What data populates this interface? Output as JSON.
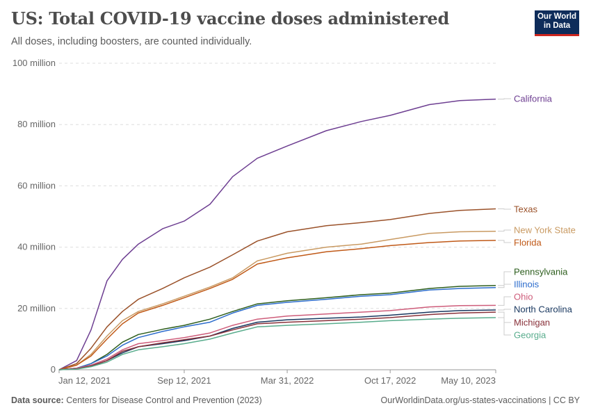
{
  "title": "US: Total COVID-19 vaccine doses administered",
  "subtitle": "All doses, including boosters, are counted individually.",
  "logo": {
    "line1": "Our World",
    "line2": "in Data",
    "bg": "#0e2c5a",
    "accent": "#ce261e"
  },
  "footer": {
    "source_label": "Data source:",
    "source": "Centers for Disease Control and Prevention (2023)",
    "link": "OurWorldinData.org/us-states-vaccinations | CC BY"
  },
  "chart_data": {
    "type": "line",
    "title": "US: Total COVID-19 vaccine doses administered",
    "ylim": [
      0,
      100000000
    ],
    "xlim": [
      "2021-01-12",
      "2023-05-10"
    ],
    "grid": "horizontal dashed",
    "legend": "right, labels at line ends",
    "y_ticks": [
      {
        "v": 0,
        "label": "0"
      },
      {
        "v": 20000000,
        "label": "20 million"
      },
      {
        "v": 40000000,
        "label": "40 million"
      },
      {
        "v": 60000000,
        "label": "60 million"
      },
      {
        "v": 80000000,
        "label": "80 million"
      },
      {
        "v": 100000000,
        "label": "100 million"
      }
    ],
    "x_ticks": [
      {
        "date": "2021-01-12",
        "label": "Jan 12, 2021"
      },
      {
        "date": "2021-09-12",
        "label": "Sep 12, 2021"
      },
      {
        "date": "2022-03-31",
        "label": "Mar 31, 2022"
      },
      {
        "date": "2022-10-17",
        "label": "Oct 17, 2022"
      },
      {
        "date": "2023-05-10",
        "label": "May 10, 2023"
      }
    ],
    "x": [
      "2021-01-12",
      "2021-02-15",
      "2021-03-15",
      "2021-04-15",
      "2021-05-15",
      "2021-06-15",
      "2021-08-01",
      "2021-09-12",
      "2021-11-01",
      "2021-12-15",
      "2022-02-01",
      "2022-03-31",
      "2022-06-15",
      "2022-08-22",
      "2022-10-17",
      "2023-01-01",
      "2023-03-01",
      "2023-05-10"
    ],
    "series": [
      {
        "name": "California",
        "color": "#6d3e91",
        "values_millions": [
          0,
          3,
          13,
          29,
          36,
          41,
          46,
          48.5,
          54,
          63,
          69,
          73,
          78,
          81,
          83,
          86.5,
          87.8,
          88.3
        ]
      },
      {
        "name": "Texas",
        "color": "#9a5129",
        "values_millions": [
          0,
          2,
          7,
          14,
          19,
          23,
          26.5,
          30,
          33.5,
          37.5,
          42,
          45,
          47,
          48,
          49,
          51,
          52,
          52.5
        ]
      },
      {
        "name": "New York State",
        "color": "#c99a62",
        "values_millions": [
          0,
          1.5,
          5,
          11,
          16,
          19,
          21.5,
          24,
          27,
          30,
          35.5,
          38,
          40,
          41,
          42.5,
          44.5,
          45,
          45.2
        ]
      },
      {
        "name": "Florida",
        "color": "#c05917",
        "values_millions": [
          0,
          1.5,
          4.5,
          10,
          15,
          18.5,
          21,
          23.5,
          26.5,
          29.5,
          34.5,
          36.5,
          38.5,
          39.5,
          40.5,
          41.5,
          42,
          42.2
        ]
      },
      {
        "name": "Pennsylvania",
        "color": "#2c5d1c",
        "values_millions": [
          0,
          0.5,
          2,
          5,
          9,
          11.5,
          13.2,
          14.5,
          16.5,
          19,
          21.5,
          22.5,
          23.5,
          24.5,
          25,
          26.5,
          27.2,
          27.5
        ]
      },
      {
        "name": "Illinois",
        "color": "#2c6ccc",
        "values_millions": [
          0,
          0.5,
          2,
          4.5,
          8,
          10.5,
          12.5,
          14,
          15.5,
          18.5,
          21,
          22,
          23,
          24,
          24.5,
          26,
          26.5,
          26.8
        ]
      },
      {
        "name": "Ohio",
        "color": "#ce5c7a",
        "values_millions": [
          0,
          0.5,
          1.5,
          3.5,
          6.5,
          8.5,
          9.5,
          10.5,
          12,
          14.5,
          16.5,
          17.5,
          18.2,
          18.8,
          19.3,
          20.5,
          20.9,
          21
        ]
      },
      {
        "name": "North Carolina",
        "color": "#18375f",
        "values_millions": [
          0,
          0.3,
          1.2,
          3,
          5.5,
          7.5,
          8.5,
          9.5,
          11,
          13.5,
          15.5,
          16.3,
          16.8,
          17.2,
          17.8,
          18.8,
          19.3,
          19.5
        ]
      },
      {
        "name": "Michigan",
        "color": "#883039",
        "values_millions": [
          0,
          0.3,
          1.2,
          3,
          6,
          7.5,
          8.8,
          9.8,
          11,
          13,
          15,
          15.5,
          16,
          16.5,
          17,
          18,
          18.5,
          18.8
        ]
      },
      {
        "name": "Georgia",
        "color": "#58ac8c",
        "values_millions": [
          0,
          0.2,
          1,
          2.5,
          5,
          6.5,
          7.5,
          8.5,
          10,
          12,
          14,
          14.5,
          15,
          15.5,
          16,
          16.5,
          16.8,
          17
        ]
      }
    ]
  }
}
